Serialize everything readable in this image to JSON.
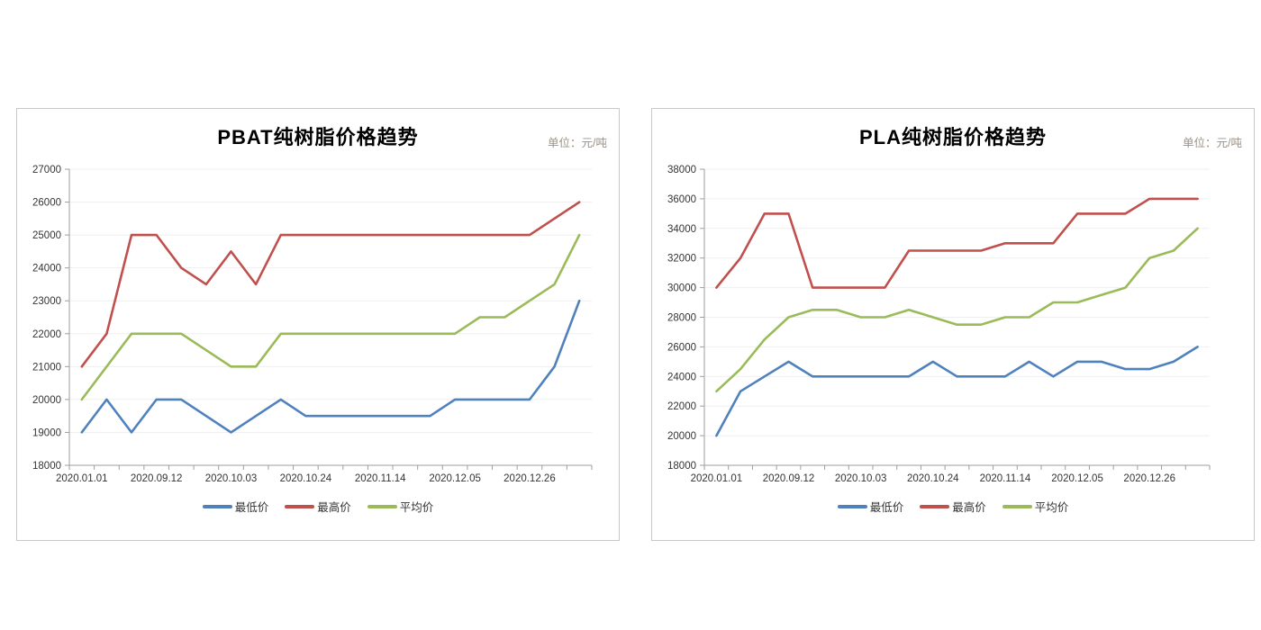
{
  "page": {
    "background": "#ffffff",
    "panel_border": "#c8c8c8",
    "grid_color": "#efefef",
    "axis_color": "#9e9e9e",
    "tick_label_color": "#333333",
    "title_color": "#000000",
    "unit_color": "#9a9184"
  },
  "chart_data": [
    {
      "type": "line",
      "title": "PBAT纯树脂价格趋势",
      "unit_label": "单位：元/吨",
      "n_points": 21,
      "x_tick_labels": [
        "2020.01.01",
        "2020.09.12",
        "2020.10.03",
        "2020.10.24",
        "2020.11.14",
        "2020.12.05",
        "2020.12.26"
      ],
      "x_tick_positions": [
        0,
        3,
        6,
        9,
        12,
        15,
        18
      ],
      "ylim": [
        18000,
        27000
      ],
      "y_step": 1000,
      "y_tick_labels": [
        "18000",
        "19000",
        "20000",
        "21000",
        "22000",
        "23000",
        "24000",
        "25000",
        "26000",
        "27000"
      ],
      "grid": "horizontal",
      "legend_position": "bottom",
      "series": [
        {
          "key": "min",
          "name": "最低价",
          "color": "#4F81BD",
          "values": [
            19000,
            20000,
            19000,
            20000,
            20000,
            19500,
            19000,
            19500,
            20000,
            19500,
            19500,
            19500,
            19500,
            19500,
            19500,
            20000,
            20000,
            20000,
            20000,
            21000,
            23000
          ]
        },
        {
          "key": "max",
          "name": "最高价",
          "color": "#C0504D",
          "values": [
            21000,
            22000,
            25000,
            25000,
            24000,
            23500,
            24500,
            23500,
            25000,
            25000,
            25000,
            25000,
            25000,
            25000,
            25000,
            25000,
            25000,
            25000,
            25000,
            25500,
            26000
          ]
        },
        {
          "key": "avg",
          "name": "平均价",
          "color": "#9BBB59",
          "values": [
            20000,
            21000,
            22000,
            22000,
            22000,
            21500,
            21000,
            21000,
            22000,
            22000,
            22000,
            22000,
            22000,
            22000,
            22000,
            22000,
            22500,
            22500,
            23000,
            23500,
            25000
          ]
        }
      ]
    },
    {
      "type": "line",
      "title": "PLA纯树脂价格趋势",
      "unit_label": "单位：元/吨",
      "n_points": 21,
      "x_tick_labels": [
        "2020.01.01",
        "2020.09.12",
        "2020.10.03",
        "2020.10.24",
        "2020.11.14",
        "2020.12.05",
        "2020.12.26"
      ],
      "x_tick_positions": [
        0,
        3,
        6,
        9,
        12,
        15,
        18
      ],
      "ylim": [
        18000,
        38000
      ],
      "y_step": 2000,
      "y_tick_labels": [
        "18000",
        "20000",
        "22000",
        "24000",
        "26000",
        "28000",
        "30000",
        "32000",
        "34000",
        "36000",
        "38000"
      ],
      "grid": "horizontal",
      "legend_position": "bottom",
      "series": [
        {
          "key": "min",
          "name": "最低价",
          "color": "#4F81BD",
          "values": [
            20000,
            23000,
            24000,
            25000,
            24000,
            24000,
            24000,
            24000,
            24000,
            25000,
            24000,
            24000,
            24000,
            25000,
            24000,
            25000,
            25000,
            24500,
            24500,
            25000,
            26000
          ]
        },
        {
          "key": "max",
          "name": "最高价",
          "color": "#C0504D",
          "values": [
            30000,
            32000,
            35000,
            35000,
            30000,
            30000,
            30000,
            30000,
            32500,
            32500,
            32500,
            32500,
            33000,
            33000,
            33000,
            35000,
            35000,
            35000,
            36000,
            36000,
            36000
          ]
        },
        {
          "key": "avg",
          "name": "平均价",
          "color": "#9BBB59",
          "values": [
            23000,
            24500,
            26500,
            28000,
            28500,
            28500,
            28000,
            28000,
            28500,
            28000,
            27500,
            27500,
            28000,
            28000,
            29000,
            29000,
            29500,
            30000,
            32000,
            32500,
            34000
          ]
        }
      ]
    }
  ]
}
